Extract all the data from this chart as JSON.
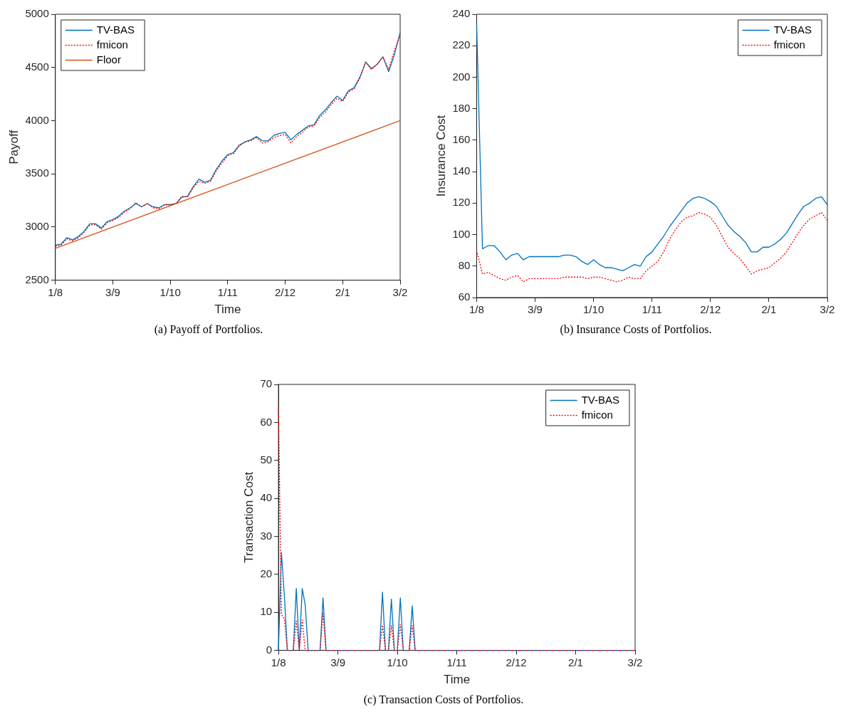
{
  "chart_data": [
    {
      "type": "line",
      "xlabel": "Time",
      "ylabel": "Payoff",
      "annotations": [
        "(a) Payoff of Portfolios."
      ],
      "legend": "top left",
      "grid": false,
      "categories": [
        "1/8",
        null,
        null,
        null,
        null,
        null,
        null,
        null,
        null,
        null,
        "3/9",
        null,
        null,
        null,
        null,
        null,
        null,
        null,
        null,
        null,
        "1/10",
        null,
        null,
        null,
        null,
        null,
        null,
        null,
        null,
        null,
        "1/11",
        null,
        null,
        null,
        null,
        null,
        null,
        null,
        null,
        null,
        "2/12",
        null,
        null,
        null,
        null,
        null,
        null,
        null,
        null,
        null,
        "2/1",
        null,
        null,
        null,
        null,
        null,
        null,
        null,
        null,
        null,
        "3/2"
      ],
      "ylim": [
        2500,
        5000
      ],
      "yticks": [
        2500,
        3000,
        3500,
        4000,
        4500,
        5000
      ],
      "series": [
        {
          "name": "TV-BAS",
          "color": "#0072bd",
          "line_style": "solid",
          "values": [
            2830,
            2840,
            2900,
            2880,
            2910,
            2960,
            3030,
            3030,
            2990,
            3050,
            3070,
            3100,
            3150,
            3180,
            3220,
            3190,
            3220,
            3190,
            3180,
            3210,
            3210,
            3220,
            3280,
            3290,
            3380,
            3450,
            3420,
            3440,
            3540,
            3620,
            3680,
            3700,
            3770,
            3800,
            3820,
            3850,
            3810,
            3810,
            3860,
            3880,
            3890,
            3820,
            3870,
            3910,
            3950,
            3960,
            4050,
            4100,
            4170,
            4230,
            4190,
            4280,
            4310,
            4410,
            4550,
            4490,
            4530,
            4600,
            4460,
            4620,
            4830
          ]
        },
        {
          "name": "fmicon",
          "color": "#ff0000",
          "line_style": "dotted",
          "values": [
            2820,
            2830,
            2890,
            2870,
            2900,
            2950,
            3020,
            3020,
            2980,
            3040,
            3060,
            3090,
            3140,
            3170,
            3230,
            3190,
            3220,
            3180,
            3170,
            3210,
            3210,
            3220,
            3290,
            3280,
            3370,
            3430,
            3410,
            3430,
            3530,
            3600,
            3670,
            3690,
            3760,
            3800,
            3810,
            3840,
            3790,
            3800,
            3840,
            3860,
            3870,
            3790,
            3850,
            3890,
            3940,
            3950,
            4030,
            4080,
            4150,
            4210,
            4180,
            4270,
            4300,
            4400,
            4550,
            4480,
            4530,
            4600,
            4480,
            4660,
            4800
          ]
        },
        {
          "name": "Floor",
          "color": "#d95319",
          "line_style": "solid",
          "values": [
            2800,
            null,
            null,
            null,
            null,
            null,
            null,
            null,
            null,
            null,
            null,
            null,
            null,
            null,
            null,
            null,
            null,
            null,
            null,
            null,
            null,
            null,
            null,
            null,
            null,
            null,
            null,
            null,
            null,
            null,
            null,
            null,
            null,
            null,
            null,
            null,
            null,
            null,
            null,
            null,
            null,
            null,
            null,
            null,
            null,
            null,
            null,
            null,
            null,
            null,
            null,
            null,
            null,
            null,
            null,
            null,
            null,
            null,
            null,
            null,
            4000
          ]
        }
      ]
    },
    {
      "type": "line",
      "ylabel": "Insurance Cost",
      "annotations": [
        "(b) Insurance Costs of Portfolios."
      ],
      "legend": "top right",
      "grid": false,
      "categories": [
        "1/8",
        null,
        null,
        null,
        null,
        null,
        null,
        null,
        null,
        null,
        "3/9",
        null,
        null,
        null,
        null,
        null,
        null,
        null,
        null,
        null,
        "1/10",
        null,
        null,
        null,
        null,
        null,
        null,
        null,
        null,
        null,
        "1/11",
        null,
        null,
        null,
        null,
        null,
        null,
        null,
        null,
        null,
        "2/12",
        null,
        null,
        null,
        null,
        null,
        null,
        null,
        null,
        null,
        "2/1",
        null,
        null,
        null,
        null,
        null,
        null,
        null,
        null,
        null,
        "3/2"
      ],
      "ylim": [
        60,
        240
      ],
      "yticks": [
        60,
        80,
        100,
        120,
        140,
        160,
        180,
        200,
        220,
        240
      ],
      "series": [
        {
          "name": "TV-BAS",
          "color": "#0072bd",
          "line_style": "solid",
          "values": [
            234,
            91,
            93,
            93,
            89,
            84,
            87,
            88,
            84,
            86,
            86,
            86,
            86,
            86,
            86,
            87,
            87,
            86,
            83,
            81,
            84,
            81,
            79,
            79,
            78,
            77,
            79,
            81,
            80,
            86,
            89,
            94,
            99,
            105,
            110,
            115,
            120,
            123,
            124,
            123,
            121,
            118,
            112,
            106,
            102,
            99,
            95,
            89,
            89,
            92,
            92,
            94,
            97,
            101,
            107,
            113,
            118,
            120,
            123,
            124,
            119
          ]
        },
        {
          "name": "fmicon",
          "color": "#ff0000",
          "line_style": "dotted",
          "values": [
            90,
            75,
            76,
            74,
            72,
            71,
            73,
            74,
            70,
            72,
            72,
            72,
            72,
            72,
            72,
            73,
            73,
            73,
            73,
            72,
            73,
            73,
            72,
            71,
            70,
            71,
            73,
            72,
            72,
            77,
            80,
            83,
            89,
            97,
            103,
            108,
            111,
            112,
            114,
            113,
            111,
            106,
            99,
            92,
            88,
            85,
            80,
            75,
            77,
            78,
            79,
            82,
            85,
            89,
            95,
            101,
            106,
            110,
            112,
            114,
            109
          ]
        }
      ]
    },
    {
      "type": "line",
      "xlabel": "Time",
      "ylabel": "Transaction Cost",
      "annotations": [
        "(c) Transaction Costs of Portfolios."
      ],
      "legend": "top right",
      "grid": false,
      "categories": [
        "1/8",
        null,
        null,
        null,
        null,
        null,
        null,
        null,
        null,
        null,
        null,
        null,
        null,
        null,
        null,
        null,
        null,
        null,
        null,
        null,
        "3/9",
        null,
        null,
        null,
        null,
        null,
        null,
        null,
        null,
        null,
        null,
        null,
        null,
        null,
        null,
        null,
        null,
        null,
        null,
        null,
        "1/10",
        null,
        null,
        null,
        null,
        null,
        null,
        null,
        null,
        null,
        null,
        null,
        null,
        null,
        null,
        null,
        null,
        null,
        null,
        null,
        "1/11",
        null,
        null,
        null,
        null,
        null,
        null,
        null,
        null,
        null,
        null,
        null,
        null,
        null,
        null,
        null,
        null,
        null,
        null,
        null,
        "2/12",
        null,
        null,
        null,
        null,
        null,
        null,
        null,
        null,
        null,
        null,
        null,
        null,
        null,
        null,
        null,
        null,
        null,
        null,
        null,
        "2/1",
        null,
        null,
        null,
        null,
        null,
        null,
        null,
        null,
        null,
        null,
        null,
        null,
        null,
        null,
        null,
        null,
        null,
        null,
        null,
        "3/2"
      ],
      "ylim": [
        0,
        70
      ],
      "yticks": [
        0,
        10,
        20,
        30,
        40,
        50,
        60,
        70
      ],
      "series": [
        {
          "name": "TV-BAS",
          "color": "#0072bd",
          "line_style": "solid",
          "values": [
            0,
            25.7,
            14.3,
            0,
            0,
            0,
            16.3,
            0,
            16.3,
            12,
            0,
            0,
            0,
            0,
            0,
            13.8,
            0,
            0,
            0,
            0,
            0,
            0,
            0,
            0,
            0,
            0,
            0,
            0,
            0,
            0,
            0,
            0,
            0,
            0,
            0,
            15.3,
            0,
            0,
            13.5,
            0,
            0,
            13.8,
            0,
            0,
            0,
            11.7,
            0,
            0,
            0,
            0,
            0,
            0,
            0,
            0,
            0,
            0,
            0,
            0,
            0,
            0,
            0,
            0,
            0,
            0,
            0,
            0,
            0,
            0,
            0,
            0,
            0,
            0,
            0,
            0,
            0,
            0,
            0,
            0,
            0,
            0,
            0,
            0,
            0,
            0,
            0,
            0,
            0,
            0,
            0,
            0,
            0,
            0,
            0,
            0,
            0,
            0,
            0,
            0,
            0,
            0,
            0,
            0,
            0,
            0,
            0,
            0,
            0,
            0,
            0,
            0,
            0,
            0,
            0,
            0,
            0,
            0,
            0,
            0,
            0,
            0,
            0
          ]
        },
        {
          "name": "fmicon",
          "color": "#ff0000",
          "line_style": "dotted",
          "values": [
            64,
            9.5,
            8.3,
            0,
            0,
            0,
            7.7,
            0,
            8,
            0,
            0,
            0,
            0,
            0,
            0,
            9.7,
            0,
            0,
            0,
            0,
            0,
            0,
            0,
            0,
            0,
            0,
            0,
            0,
            0,
            0,
            0,
            0,
            0,
            0,
            0,
            6.6,
            0,
            0,
            6.5,
            0,
            0,
            6.8,
            0,
            0,
            0,
            6.5,
            0,
            0,
            0,
            0,
            0,
            0,
            0,
            0,
            0,
            0,
            0,
            0,
            0,
            0,
            0,
            0,
            0,
            0,
            0,
            0,
            0,
            0,
            0,
            0,
            0,
            0,
            0,
            0,
            0,
            0,
            0,
            0,
            0,
            0,
            0,
            0,
            0,
            0,
            0,
            0,
            0,
            0,
            0,
            0,
            0,
            0,
            0,
            0,
            0,
            0,
            0,
            0,
            0,
            0,
            0,
            0,
            0,
            0,
            0,
            0,
            0,
            0,
            0,
            0,
            0,
            0,
            0,
            0,
            0,
            0,
            0,
            0,
            0,
            0,
            0
          ]
        }
      ]
    }
  ]
}
